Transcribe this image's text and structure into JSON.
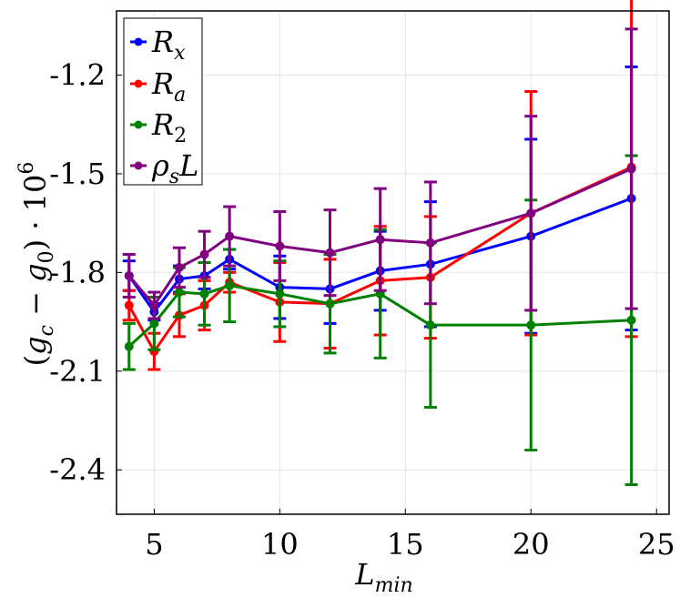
{
  "chart_data": {
    "type": "line",
    "title": "",
    "xlabel": "L_min",
    "ylabel": "(g_c − g_0) · 10^6",
    "xlim": [
      3.5,
      25.5
    ],
    "ylim": [
      -2.535,
      -1.005
    ],
    "xticks": [
      5,
      10,
      15,
      20,
      25
    ],
    "yticks": [
      -1.2,
      -1.5,
      -1.8,
      -2.1,
      -2.4
    ],
    "ytick_labels": [
      "-1.2",
      "-1.5",
      "-1.8",
      "-2.1",
      "-2.4"
    ],
    "grid": true,
    "legend_position": "top-left",
    "x": [
      4,
      5,
      6,
      7,
      8,
      10,
      12,
      14,
      16,
      20,
      24
    ],
    "series": [
      {
        "name": "R_x",
        "color": "#0000ff",
        "values": [
          -1.81,
          -1.92,
          -1.82,
          -1.81,
          -1.76,
          -1.845,
          -1.85,
          -1.795,
          -1.775,
          -1.69,
          -1.575
        ],
        "errors": [
          0.045,
          0.025,
          0.04,
          0.04,
          0.03,
          0.095,
          0.105,
          0.12,
          0.19,
          0.295,
          0.4
        ]
      },
      {
        "name": "R_a",
        "color": "#ff0000",
        "values": [
          -1.9,
          -2.04,
          -1.93,
          -1.9,
          -1.83,
          -1.89,
          -1.895,
          -1.825,
          -1.815,
          -1.62,
          -1.48
        ],
        "errors": [
          0.045,
          0.055,
          0.065,
          0.075,
          0.03,
          0.12,
          0.135,
          0.165,
          0.185,
          0.37,
          0.515
        ]
      },
      {
        "name": "R_2",
        "color": "#008000",
        "values": [
          -2.025,
          -1.955,
          -1.86,
          -1.865,
          -1.84,
          -1.865,
          -1.895,
          -1.865,
          -1.96,
          -1.96,
          -1.945
        ],
        "errors": [
          0.07,
          0.08,
          0.075,
          0.095,
          0.11,
          0.1,
          0.15,
          0.195,
          0.25,
          0.38,
          0.5
        ]
      },
      {
        "name": "ρ_s L",
        "color": "#800080",
        "values": [
          -1.81,
          -1.9,
          -1.785,
          -1.745,
          -1.69,
          -1.72,
          -1.74,
          -1.7,
          -1.71,
          -1.62,
          -1.485
        ],
        "errors": [
          0.065,
          0.04,
          0.06,
          0.07,
          0.09,
          0.105,
          0.13,
          0.155,
          0.185,
          0.295,
          0.425
        ]
      }
    ]
  }
}
